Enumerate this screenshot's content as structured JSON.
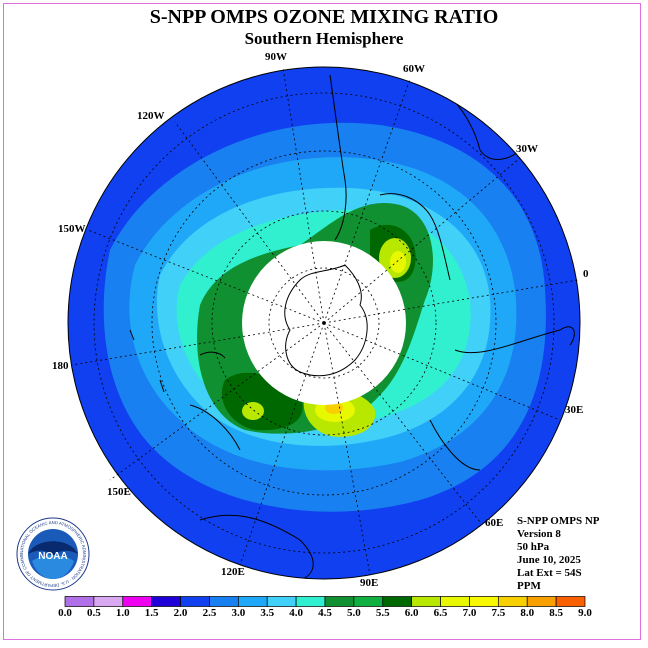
{
  "title": "S-NPP OMPS OZONE MIXING RATIO",
  "subtitle": "Southern Hemisphere",
  "longitude_labels": [
    "90W",
    "60W",
    "30W",
    "0",
    "30E",
    "60E",
    "90E",
    "120E",
    "150E",
    "180",
    "150W",
    "120W"
  ],
  "info": {
    "instrument": "S-NPP OMPS NP",
    "version": "Version 8",
    "pressure": "50 hPa",
    "date": "June 10, 2025",
    "lat_ext": "Lat Ext = 54S",
    "units": "PPM"
  },
  "logo": {
    "text": "NOAA",
    "ring_text": "NATIONAL OCEANIC AND ATMOSPHERIC ADMINISTRATION · U.S. DEPARTMENT OF COMMERCE"
  },
  "colorbar": {
    "labels": [
      "0.0",
      "0.5",
      "1.0",
      "1.5",
      "2.0",
      "2.5",
      "3.0",
      "3.5",
      "4.0",
      "4.5",
      "5.0",
      "5.5",
      "6.0",
      "6.5",
      "7.0",
      "7.5",
      "8.0",
      "8.5",
      "9.0"
    ],
    "colors": [
      "#b070e8",
      "#d8a8f0",
      "#f000f0",
      "#2000d8",
      "#1040f0",
      "#1880f0",
      "#20a8f8",
      "#40d0f8",
      "#30f0d0",
      "#109030",
      "#10b040",
      "#006800",
      "#b8e800",
      "#e8f800",
      "#f8f800",
      "#f8d000",
      "#f8a000",
      "#f86000",
      "#f00000",
      "#906040"
    ]
  },
  "map": {
    "projection": "south-polar-stereographic",
    "latitude_extent": -54,
    "missing_data_polar_cap": true
  }
}
